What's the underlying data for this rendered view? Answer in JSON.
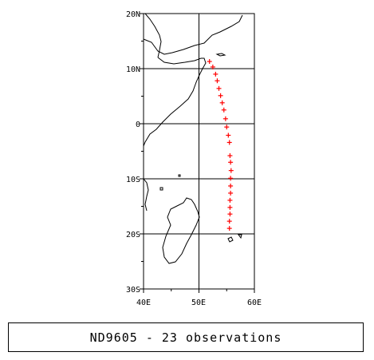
{
  "map": {
    "lat_labels": [
      "20N",
      "10N",
      "0",
      "10S",
      "20S",
      "30S"
    ],
    "lon_labels": [
      "40E",
      "50E",
      "60E"
    ],
    "extent": {
      "lon": [
        40,
        60
      ],
      "lat": [
        -30,
        20
      ]
    },
    "track": {
      "marker": "+",
      "color": "#ff0000",
      "points": [
        [
          51.9,
          11.3
        ],
        [
          52.5,
          10.3
        ],
        [
          53.0,
          9.0
        ],
        [
          53.3,
          7.8
        ],
        [
          53.6,
          6.4
        ],
        [
          53.9,
          5.1
        ],
        [
          54.2,
          3.8
        ],
        [
          54.5,
          2.5
        ],
        [
          54.8,
          0.9
        ],
        [
          55.0,
          -0.6
        ],
        [
          55.3,
          -2.1
        ],
        [
          55.5,
          -3.4
        ],
        [
          55.6,
          -5.8
        ],
        [
          55.7,
          -7.0
        ],
        [
          55.8,
          -8.5
        ],
        [
          55.7,
          -9.9
        ],
        [
          55.7,
          -11.3
        ],
        [
          55.7,
          -12.6
        ],
        [
          55.6,
          -13.9
        ],
        [
          55.6,
          -15.2
        ],
        [
          55.6,
          -16.4
        ],
        [
          55.5,
          -17.7
        ],
        [
          55.5,
          -19.0
        ]
      ]
    }
  },
  "caption": "ND9605 - 23 observations"
}
